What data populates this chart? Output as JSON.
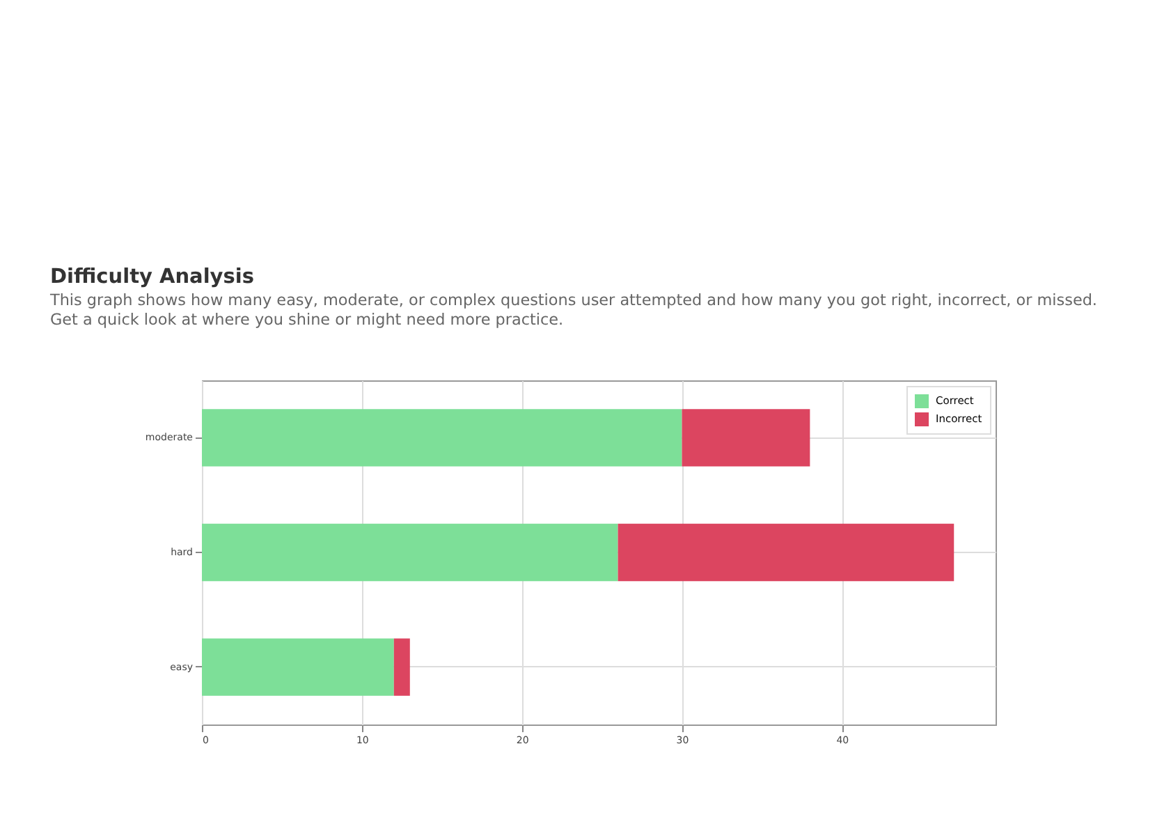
{
  "chart_data": {
    "type": "bar",
    "title": "Difficulty Analysis",
    "subtitle": "This graph shows how many easy, moderate, or complex questions user attempted and how many you got right, incorrect, or missed. Get a quick look at where you shine or might need more practice.",
    "orientation": "horizontal",
    "stacked": true,
    "categories": [
      "moderate",
      "hard",
      "easy"
    ],
    "series": [
      {
        "name": "Correct",
        "color": "#7ddf98",
        "values": [
          30,
          26,
          12
        ]
      },
      {
        "name": "Incorrect",
        "color": "#dc4560",
        "values": [
          8,
          21,
          1
        ]
      }
    ],
    "xlim": [
      0,
      49.6
    ],
    "xticks": [
      0,
      10,
      20,
      30,
      40
    ],
    "grid": true,
    "legend": "top right"
  }
}
